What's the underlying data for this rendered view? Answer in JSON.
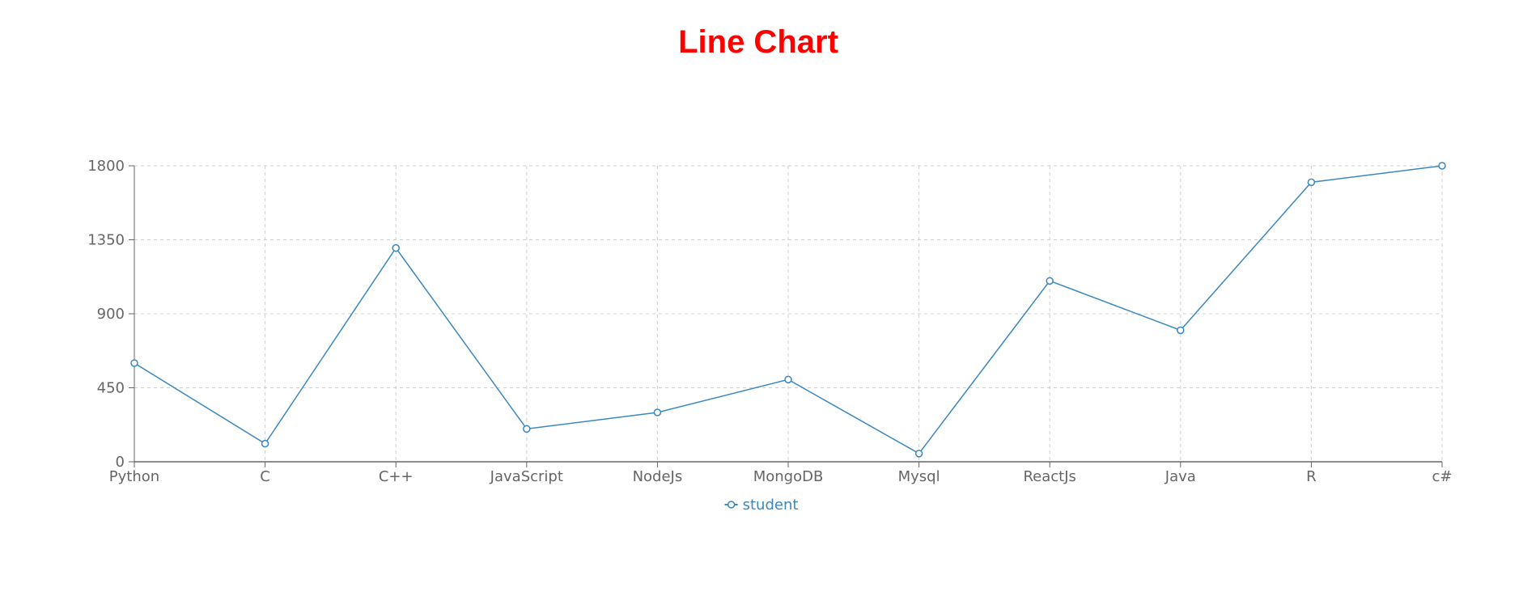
{
  "chart_data": {
    "type": "line",
    "title": "Line Chart",
    "xlabel": "",
    "ylabel": "",
    "categories": [
      "Python",
      "C",
      "C++",
      "JavaScript",
      "NodeJs",
      "MongoDB",
      "Mysql",
      "ReactJs",
      "Java",
      "R",
      "c#"
    ],
    "series": [
      {
        "name": "student",
        "values": [
          600,
          110,
          1300,
          200,
          300,
          500,
          50,
          1100,
          800,
          1700,
          1800
        ]
      }
    ],
    "ylim": [
      0,
      1800
    ],
    "yticks": [
      0,
      450,
      900,
      1350,
      1800
    ],
    "grid": true,
    "legend_position": "bottom-center",
    "colors": {
      "title": "#ff0000",
      "line": "#3a87c0",
      "grid": "#cccccc",
      "axis": "#666666"
    }
  }
}
